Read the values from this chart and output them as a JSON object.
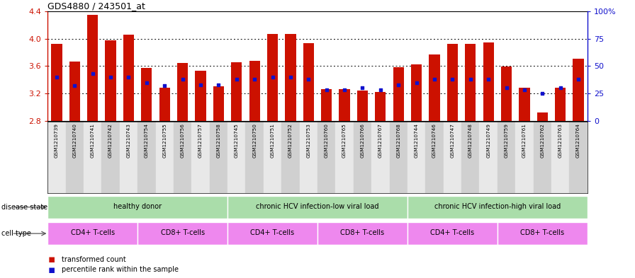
{
  "title": "GDS4880 / 243501_at",
  "samples": [
    "GSM1210739",
    "GSM1210740",
    "GSM1210741",
    "GSM1210742",
    "GSM1210743",
    "GSM1210754",
    "GSM1210755",
    "GSM1210756",
    "GSM1210757",
    "GSM1210758",
    "GSM1210745",
    "GSM1210750",
    "GSM1210751",
    "GSM1210752",
    "GSM1210753",
    "GSM1210760",
    "GSM1210765",
    "GSM1210766",
    "GSM1210767",
    "GSM1210768",
    "GSM1210744",
    "GSM1210746",
    "GSM1210747",
    "GSM1210748",
    "GSM1210749",
    "GSM1210759",
    "GSM1210761",
    "GSM1210762",
    "GSM1210763",
    "GSM1210764"
  ],
  "transformed_count": [
    3.92,
    3.67,
    4.35,
    3.97,
    4.06,
    3.57,
    3.28,
    3.64,
    3.53,
    3.3,
    3.65,
    3.68,
    4.07,
    4.07,
    3.93,
    3.26,
    3.26,
    3.24,
    3.22,
    3.58,
    3.62,
    3.77,
    3.92,
    3.92,
    3.94,
    3.59,
    3.28,
    2.92,
    3.28,
    3.71
  ],
  "percentile_rank": [
    40,
    32,
    43,
    40,
    40,
    35,
    32,
    38,
    33,
    33,
    38,
    38,
    40,
    40,
    38,
    28,
    28,
    30,
    28,
    33,
    35,
    38,
    38,
    38,
    38,
    30,
    28,
    25,
    30,
    38
  ],
  "y_min": 2.8,
  "y_max": 4.4,
  "y_ticks": [
    2.8,
    3.2,
    3.6,
    4.0,
    4.4
  ],
  "y2_ticks": [
    0,
    25,
    50,
    75,
    100
  ],
  "y2_ticklabels": [
    "0",
    "25",
    "50",
    "75",
    "100%"
  ],
  "bar_color": "#cc1100",
  "dot_color": "#1111cc",
  "disease_groups": [
    {
      "label": "healthy donor",
      "start": 0,
      "end": 9,
      "color": "#aaddaa"
    },
    {
      "label": "chronic HCV infection-low viral load",
      "start": 10,
      "end": 19,
      "color": "#aaddaa"
    },
    {
      "label": "chronic HCV infection-high viral load",
      "start": 20,
      "end": 29,
      "color": "#aaddaa"
    }
  ],
  "cell_type_groups": [
    {
      "label": "CD4+ T-cells",
      "start": 0,
      "end": 4,
      "color": "#ee88ee"
    },
    {
      "label": "CD8+ T-cells",
      "start": 5,
      "end": 9,
      "color": "#ee88ee"
    },
    {
      "label": "CD4+ T-cells",
      "start": 10,
      "end": 14,
      "color": "#ee88ee"
    },
    {
      "label": "CD8+ T-cells",
      "start": 15,
      "end": 19,
      "color": "#ee88ee"
    },
    {
      "label": "CD4+ T-cells",
      "start": 20,
      "end": 24,
      "color": "#ee88ee"
    },
    {
      "label": "CD8+ T-cells",
      "start": 25,
      "end": 29,
      "color": "#ee88ee"
    }
  ],
  "grid_ticks": [
    3.2,
    3.6,
    4.0
  ]
}
